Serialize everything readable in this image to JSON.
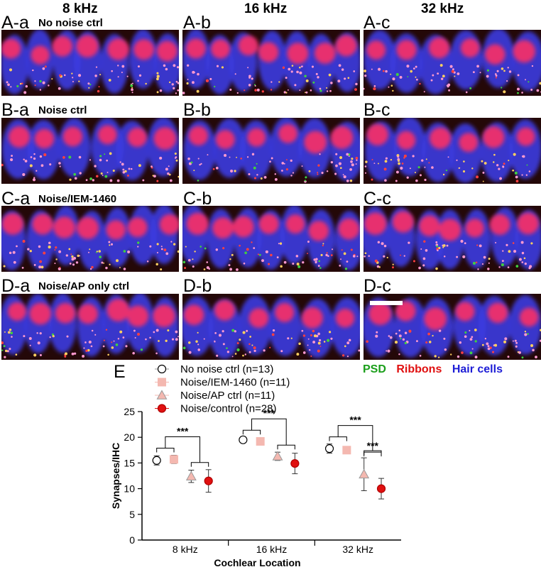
{
  "columns": [
    "8 kHz",
    "16 kHz",
    "32 kHz"
  ],
  "rows": [
    {
      "title": "No noise ctrl",
      "labels": [
        "A-a",
        "A-b",
        "A-c"
      ]
    },
    {
      "title": "Noise ctrl",
      "labels": [
        "B-a",
        "B-b",
        "B-c"
      ]
    },
    {
      "title": "Noise/IEM-1460",
      "labels": [
        "C-a",
        "C-b",
        "C-c"
      ]
    },
    {
      "title": "Noise/AP only ctrl",
      "labels": [
        "D-a",
        "D-b",
        "D-c"
      ]
    }
  ],
  "channel_legend": [
    {
      "label": "PSD",
      "color": "#1a9e1a"
    },
    {
      "label": "Ribbons",
      "color": "#e01010"
    },
    {
      "label": "Hair cells",
      "color": "#1d1dd6"
    }
  ],
  "panel_E_label": "E",
  "chart_data": {
    "type": "scatter",
    "categories": [
      "8 kHz",
      "16 kHz",
      "32 kHz"
    ],
    "xlabel": "Cochlear Location",
    "ylabel": "Synapses/IHC",
    "ylim": [
      0,
      25
    ],
    "yticks": [
      0,
      5,
      10,
      15,
      20,
      25
    ],
    "series": [
      {
        "name": "No noise ctrl (n=13)",
        "marker": "circle",
        "fill": "#ffffff",
        "stroke": "#000000",
        "values": [
          15.5,
          19.5,
          17.8
        ],
        "err": [
          0.9,
          0.5,
          0.9
        ]
      },
      {
        "name": "Noise/IEM-1460 (n=11)",
        "marker": "square",
        "fill": "#f4b8b0",
        "stroke": "#f4b8b0",
        "values": [
          15.7,
          19.2,
          17.5
        ],
        "err": [
          0.8,
          0.5,
          0.5
        ]
      },
      {
        "name": "Noise/AP ctrl (n=11)",
        "marker": "triangle",
        "fill": "#f4b8b0",
        "stroke": "#9a9a9a",
        "values": [
          12.4,
          16.3,
          12.8
        ],
        "err": [
          1.2,
          0.8,
          3.2
        ]
      },
      {
        "name": "Noise/control (n=28)",
        "marker": "circle",
        "fill": "#e01010",
        "stroke": "#b00000",
        "values": [
          11.5,
          14.9,
          10.0
        ],
        "err": [
          2.2,
          2.0,
          2.0
        ]
      }
    ],
    "significance": [
      "***",
      "***",
      "***",
      "***"
    ]
  }
}
